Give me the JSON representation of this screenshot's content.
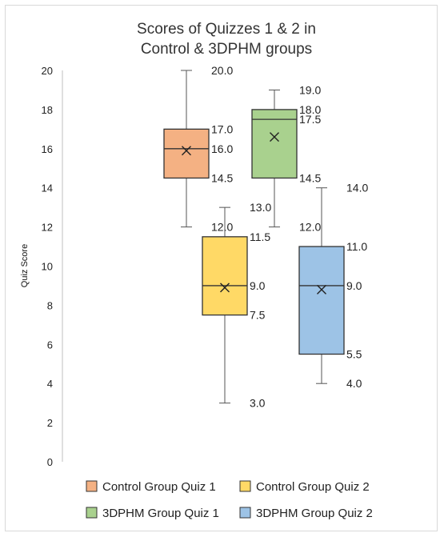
{
  "chart_data": {
    "type": "boxplot",
    "title": [
      "Scores of Quizzes 1 & 2 in",
      "Control & 3DPHM groups"
    ],
    "ylabel": "Quiz Score",
    "xlabel": "",
    "ylim": [
      0,
      20
    ],
    "yticks": [
      0,
      2,
      4,
      6,
      8,
      10,
      12,
      14,
      16,
      18,
      20
    ],
    "grid": false,
    "legend_position": "bottom",
    "series": [
      {
        "name": "Control Group Quiz 1",
        "color": "#f4b183",
        "min": 12.0,
        "q1": 14.5,
        "median": 16.0,
        "q3": 17.0,
        "max": 20.0,
        "mean": 15.9,
        "labels": {
          "max": "20.0",
          "q3": "17.0",
          "median": "16.0",
          "q1": "14.5",
          "min": "12.0"
        }
      },
      {
        "name": "Control Group Quiz 2",
        "color": "#ffd966",
        "min": 3.0,
        "q1": 7.5,
        "median": 9.0,
        "q3": 11.5,
        "max": 13.0,
        "mean": 8.9,
        "labels": {
          "max": "13.0",
          "q3": "11.5",
          "median": "9.0",
          "q1": "7.5",
          "min": "3.0"
        }
      },
      {
        "name": "3DPHM Group Quiz 1",
        "color": "#a9d18e",
        "min": 12.0,
        "q1": 14.5,
        "median": 17.5,
        "q3": 18.0,
        "max": 19.0,
        "mean": 16.6,
        "labels": {
          "max": "19.0",
          "q3": "18.0",
          "median": "17.5",
          "q1": "14.5",
          "min": "12.0"
        }
      },
      {
        "name": "3DPHM Group Quiz 2",
        "color": "#9dc3e6",
        "min": 4.0,
        "q1": 5.5,
        "median": 9.0,
        "q3": 11.0,
        "max": 14.0,
        "mean": 8.8,
        "labels": {
          "max": "14.0",
          "q3": "11.0",
          "median": "9.0",
          "q1": "5.5",
          "min": "4.0"
        }
      }
    ]
  }
}
